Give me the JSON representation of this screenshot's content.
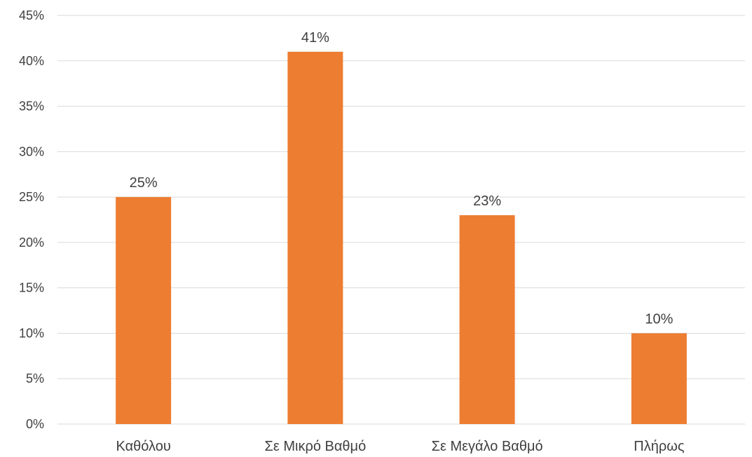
{
  "chart_data": {
    "type": "bar",
    "categories": [
      "Καθόλου",
      "Σε Μικρό Βαθμό",
      "Σε Μεγάλο Βαθμό",
      "Πλήρως"
    ],
    "values": [
      25,
      41,
      23,
      10
    ],
    "data_labels": [
      "25%",
      "41%",
      "23%",
      "10%"
    ],
    "ylim": [
      0,
      45
    ],
    "yticks": [
      0,
      5,
      10,
      15,
      20,
      25,
      30,
      35,
      40,
      45
    ],
    "ytick_labels": [
      "0%",
      "5%",
      "10%",
      "15%",
      "20%",
      "25%",
      "30%",
      "35%",
      "40%",
      "45%"
    ],
    "grid": true,
    "bar_color": "#ED7D31",
    "title": "",
    "xlabel": "",
    "ylabel": ""
  }
}
